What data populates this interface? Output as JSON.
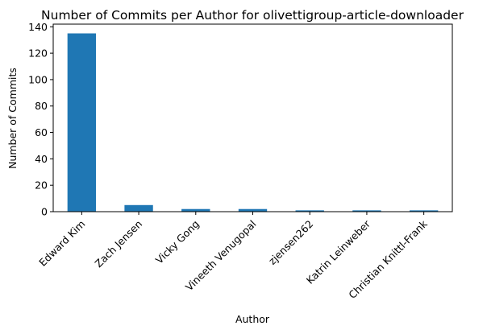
{
  "chart_data": {
    "type": "bar",
    "title": "Number of Commits per Author for olivettigroup-article-downloader",
    "xlabel": "Author",
    "ylabel": "Number of Commits",
    "categories": [
      "Edward Kim",
      "Zach Jensen",
      "Vicky Gong",
      "Vineeth Venugopal",
      "zjensen262",
      "Katrin Leinweber",
      "Christian Knittl-Frank"
    ],
    "values": [
      135,
      5,
      2,
      2,
      1,
      1,
      1
    ],
    "ylim": [
      0,
      142
    ],
    "yticks": [
      0,
      20,
      40,
      60,
      80,
      100,
      120,
      140
    ],
    "bar_color": "#1f77b4",
    "grid": false,
    "legend": "none"
  }
}
